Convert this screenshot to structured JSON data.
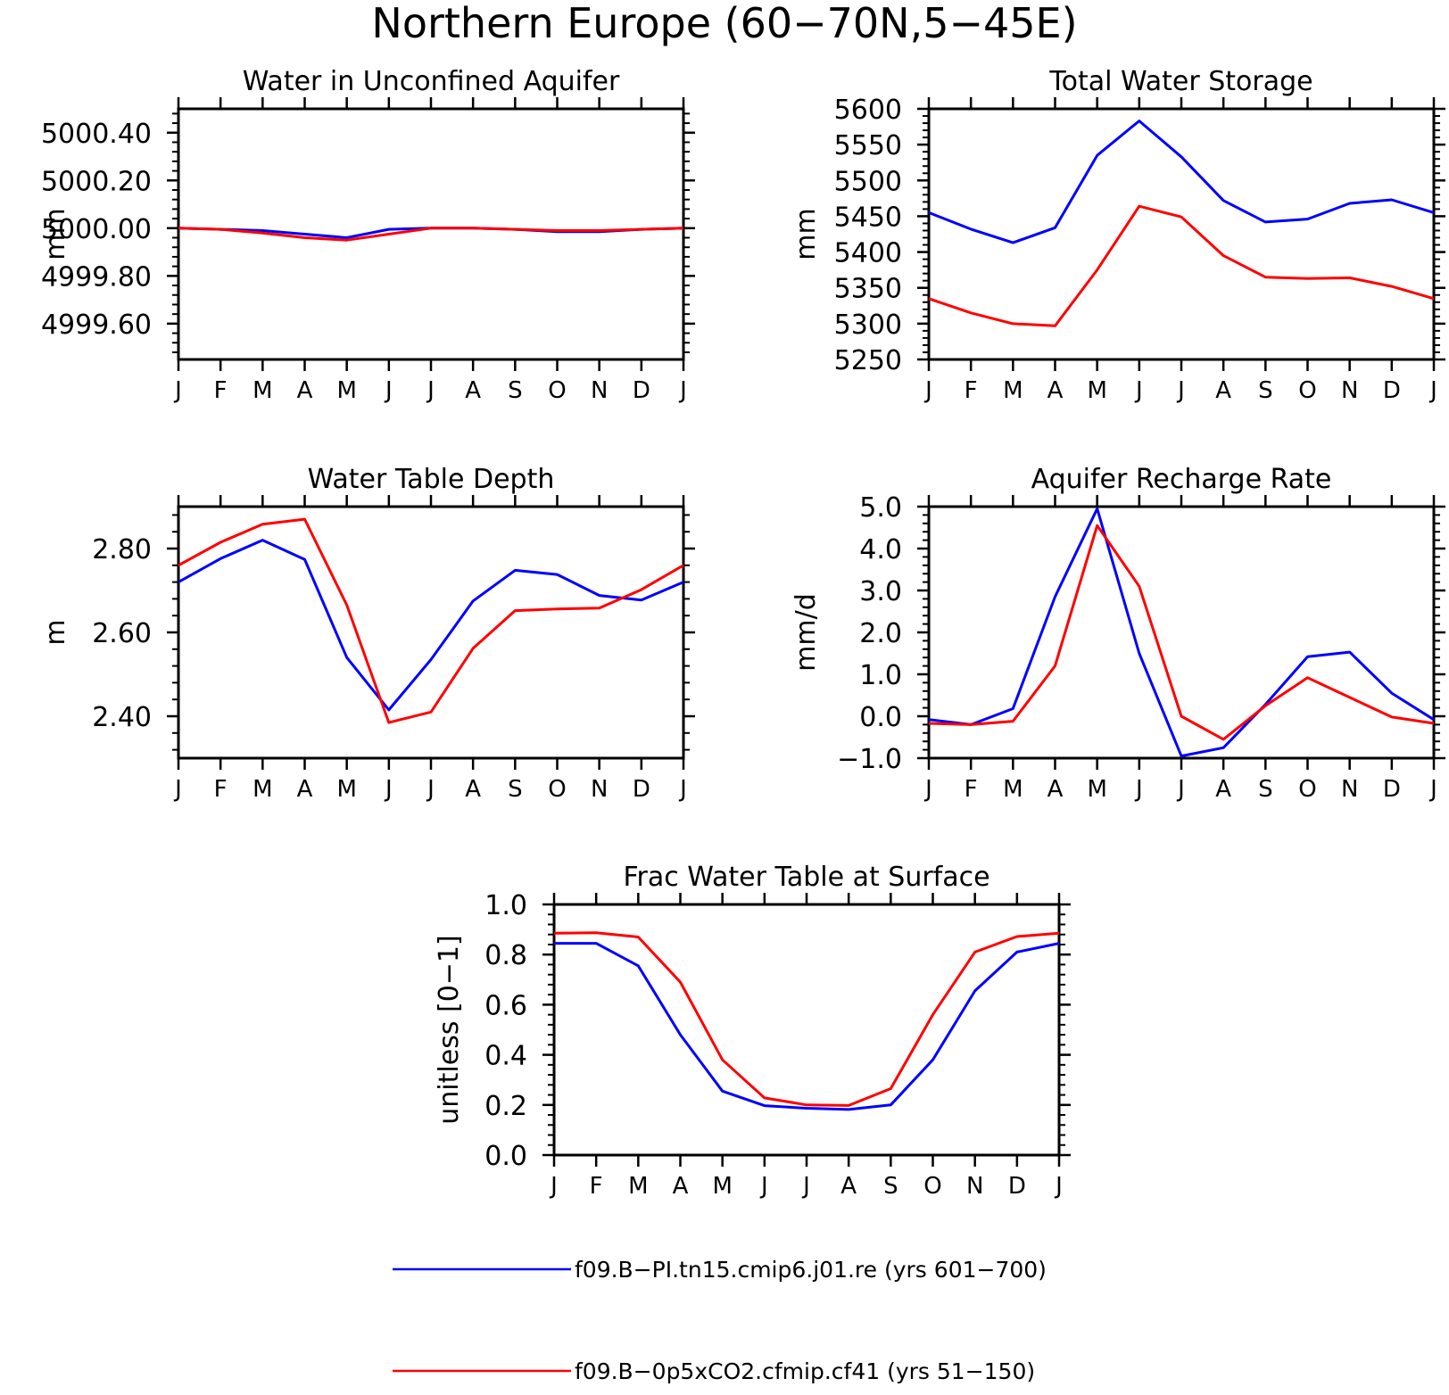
{
  "title": "Northern Europe (60−70N,5−45E)",
  "colors": {
    "series_1": "#0000ff",
    "series_2": "#ff0000",
    "axis": "#000000"
  },
  "legend": [
    {
      "label": "f09.B−PI.tn15.cmip6.j01.re (yrs 601−700)",
      "color": "#0000ff"
    },
    {
      "label": "f09.B−0p5xCO2.cfmip.cf41 (yrs 51−150)",
      "color": "#ff0000"
    }
  ],
  "chart_data": [
    {
      "type": "line",
      "title": "Water in Unconfined Aquifer",
      "ylabel": "mm",
      "xlabel": "",
      "categories": [
        "J",
        "F",
        "M",
        "A",
        "M",
        "J",
        "J",
        "A",
        "S",
        "O",
        "N",
        "D",
        "J"
      ],
      "ylim": [
        4999.45,
        5000.5
      ],
      "yticks": [
        4999.6,
        4999.8,
        5000.0,
        5000.2,
        5000.4
      ],
      "ytick_labels": [
        "4999.60",
        "4999.80",
        "5000.00",
        "5000.20",
        "5000.40"
      ],
      "series": [
        {
          "values": [
            5000.0,
            4999.995,
            4999.99,
            4999.975,
            4999.96,
            4999.995,
            5000.0,
            5000.0,
            4999.995,
            4999.985,
            4999.985,
            4999.995,
            5000.0
          ]
        },
        {
          "values": [
            5000.0,
            4999.995,
            4999.98,
            4999.96,
            4999.95,
            4999.975,
            5000.0,
            5000.0,
            4999.995,
            4999.99,
            4999.99,
            4999.995,
            5000.0
          ]
        }
      ]
    },
    {
      "type": "line",
      "title": "Total Water Storage",
      "ylabel": "mm",
      "xlabel": "",
      "categories": [
        "J",
        "F",
        "M",
        "A",
        "M",
        "J",
        "J",
        "A",
        "S",
        "O",
        "N",
        "D",
        "J"
      ],
      "ylim": [
        5250,
        5600
      ],
      "yticks": [
        5250,
        5300,
        5350,
        5400,
        5450,
        5500,
        5550,
        5600
      ],
      "ytick_labels": [
        "5250",
        "5300",
        "5350",
        "5400",
        "5450",
        "5500",
        "5550",
        "5600"
      ],
      "series": [
        {
          "values": [
            5455,
            5432,
            5413,
            5434,
            5535,
            5583,
            5533,
            5472,
            5442,
            5446,
            5468,
            5473,
            5455
          ]
        },
        {
          "values": [
            5335,
            5315,
            5300,
            5297,
            5375,
            5464,
            5449,
            5395,
            5365,
            5363,
            5364,
            5352,
            5335
          ]
        }
      ]
    },
    {
      "type": "line",
      "title": "Water Table Depth",
      "ylabel": "m",
      "xlabel": "",
      "categories": [
        "J",
        "F",
        "M",
        "A",
        "M",
        "J",
        "J",
        "A",
        "S",
        "O",
        "N",
        "D",
        "J"
      ],
      "ylim": [
        2.3,
        2.9
      ],
      "yticks": [
        2.4,
        2.6,
        2.8
      ],
      "ytick_labels": [
        "2.40",
        "2.60",
        "2.80"
      ],
      "series": [
        {
          "values": [
            2.72,
            2.776,
            2.82,
            2.774,
            2.54,
            2.415,
            2.535,
            2.675,
            2.748,
            2.738,
            2.688,
            2.677,
            2.72
          ]
        },
        {
          "values": [
            2.76,
            2.815,
            2.858,
            2.87,
            2.665,
            2.385,
            2.41,
            2.562,
            2.652,
            2.656,
            2.658,
            2.702,
            2.76
          ]
        }
      ]
    },
    {
      "type": "line",
      "title": "Aquifer Recharge Rate",
      "ylabel": "mm/d",
      "xlabel": "",
      "categories": [
        "J",
        "F",
        "M",
        "A",
        "M",
        "J",
        "J",
        "A",
        "S",
        "O",
        "N",
        "D",
        "J"
      ],
      "ylim": [
        -1.0,
        5.0
      ],
      "yticks": [
        -1.0,
        0.0,
        1.0,
        2.0,
        3.0,
        4.0,
        5.0
      ],
      "ytick_labels": [
        "−1.0",
        "0.0",
        "1.0",
        "2.0",
        "3.0",
        "4.0",
        "5.0"
      ],
      "series": [
        {
          "values": [
            -0.08,
            -0.2,
            0.18,
            2.85,
            4.95,
            1.5,
            -0.95,
            -0.75,
            0.28,
            1.42,
            1.53,
            0.55,
            -0.08
          ]
        },
        {
          "values": [
            -0.17,
            -0.2,
            -0.12,
            1.2,
            4.55,
            3.1,
            0.0,
            -0.55,
            0.25,
            0.92,
            0.45,
            -0.02,
            -0.17
          ]
        }
      ]
    },
    {
      "type": "line",
      "title": "Frac Water Table at Surface",
      "ylabel": "unitless [0−1]",
      "xlabel": "",
      "categories": [
        "J",
        "F",
        "M",
        "A",
        "M",
        "J",
        "J",
        "A",
        "S",
        "O",
        "N",
        "D",
        "J"
      ],
      "ylim": [
        0.0,
        1.0
      ],
      "yticks": [
        0.0,
        0.2,
        0.4,
        0.6,
        0.8,
        1.0
      ],
      "ytick_labels": [
        "0.0",
        "0.2",
        "0.4",
        "0.6",
        "0.8",
        "1.0"
      ],
      "series": [
        {
          "values": [
            0.845,
            0.845,
            0.755,
            0.48,
            0.255,
            0.197,
            0.187,
            0.182,
            0.2,
            0.38,
            0.655,
            0.81,
            0.845
          ]
        },
        {
          "values": [
            0.885,
            0.887,
            0.87,
            0.69,
            0.38,
            0.228,
            0.2,
            0.198,
            0.265,
            0.56,
            0.81,
            0.872,
            0.885
          ]
        }
      ]
    }
  ]
}
